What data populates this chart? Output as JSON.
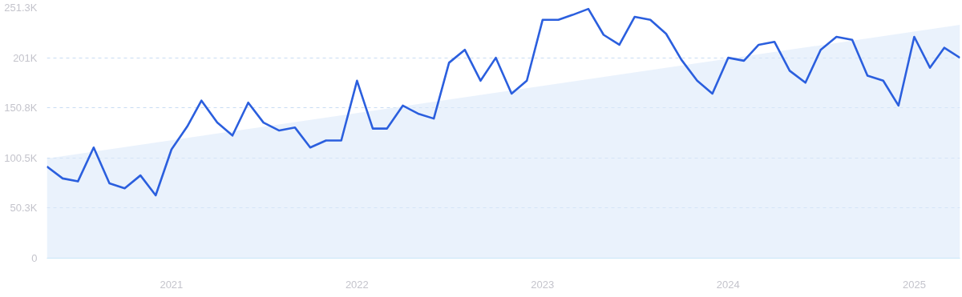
{
  "chart_data": {
    "type": "line",
    "x": [
      "2020-05",
      "2020-06",
      "2020-07",
      "2020-08",
      "2020-09",
      "2020-10",
      "2020-11",
      "2020-12",
      "2021-01",
      "2021-02",
      "2021-03",
      "2021-04",
      "2021-05",
      "2021-06",
      "2021-07",
      "2021-08",
      "2021-09",
      "2021-10",
      "2021-11",
      "2021-12",
      "2022-01",
      "2022-02",
      "2022-03",
      "2022-04",
      "2022-05",
      "2022-06",
      "2022-07",
      "2022-08",
      "2022-09",
      "2022-10",
      "2022-11",
      "2022-12",
      "2023-01",
      "2023-02",
      "2023-03",
      "2023-04",
      "2023-05",
      "2023-06",
      "2023-07",
      "2023-08",
      "2023-09",
      "2023-10",
      "2023-11",
      "2023-12",
      "2024-01",
      "2024-02",
      "2024-03",
      "2024-04",
      "2024-05",
      "2024-06",
      "2024-07",
      "2024-08",
      "2024-09",
      "2024-10",
      "2024-11",
      "2024-12",
      "2025-01",
      "2025-02",
      "2025-03",
      "2025-04"
    ],
    "series": [
      {
        "type": "area",
        "color": "#dceafa",
        "x": [
          "2020-05",
          "2025-04"
        ],
        "values": [
          100,
          234
        ]
      },
      {
        "color": "#2b5fde",
        "values": [
          92,
          80,
          77,
          111,
          75,
          70,
          83,
          63,
          109,
          132,
          158,
          136,
          123,
          156,
          136,
          128,
          131,
          111,
          118,
          118,
          178,
          130,
          130,
          153,
          145,
          140,
          196,
          209,
          178,
          201,
          165,
          178,
          239,
          239,
          244,
          250,
          224,
          214,
          242,
          239,
          225,
          199,
          178,
          165,
          201,
          198,
          214,
          217,
          188,
          176,
          209,
          222,
          219,
          183,
          178,
          153,
          222,
          191,
          211,
          201
        ]
      }
    ],
    "xlim": [
      "2020-05",
      "2025-04"
    ],
    "xticks": [
      {
        "value": "2021",
        "label": "2021"
      },
      {
        "value": "2022",
        "label": "2022"
      },
      {
        "value": "2023",
        "label": "2023"
      },
      {
        "value": "2024",
        "label": "2024"
      },
      {
        "value": "2025",
        "label": "2025"
      }
    ],
    "ylim": [
      0,
      251.3
    ],
    "yticks": [
      0,
      {
        "value": 50.3,
        "label": "50.3K"
      },
      {
        "value": 100.5,
        "label": "100.5K"
      },
      {
        "value": 150.8,
        "label": "150.8K"
      },
      {
        "value": 201,
        "label": "201K"
      },
      {
        "value": 251.3,
        "label": "251.3K"
      }
    ],
    "grid": "y"
  }
}
